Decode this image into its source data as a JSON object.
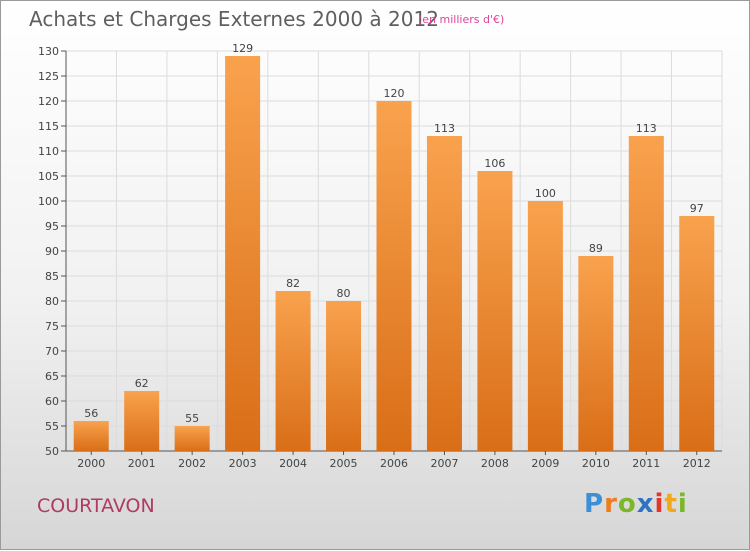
{
  "header": {
    "title": "Achats et Charges Externes 2000 à 2012",
    "unit": "(en milliers d'€)"
  },
  "footer": {
    "commune": "COURTAVON",
    "brand": "Proxiti"
  },
  "colors": {
    "bar_light": "#f9a24e",
    "bar_dark": "#d96e17",
    "brand_p": "#3a8fd6",
    "brand_r": "#f07c1c",
    "brand_o": "#7ab82a",
    "brand_x": "#2f74c0",
    "brand_i": "#e4342b",
    "brand_t": "#f0a81c",
    "brand_i2": "#7ab82a"
  },
  "chart_data": {
    "type": "bar",
    "title": "Achats et Charges Externes 2000 à 2012",
    "xlabel": "",
    "ylabel": "",
    "categories": [
      "2000",
      "2001",
      "2002",
      "2003",
      "2004",
      "2005",
      "2006",
      "2007",
      "2008",
      "2009",
      "2010",
      "2011",
      "2012"
    ],
    "values": [
      56,
      62,
      55,
      129,
      82,
      80,
      120,
      113,
      106,
      100,
      89,
      113,
      97
    ],
    "ylim": [
      50,
      130
    ],
    "yticks": [
      50,
      55,
      60,
      65,
      70,
      75,
      80,
      85,
      90,
      95,
      100,
      105,
      110,
      115,
      120,
      125,
      130
    ],
    "grid": true
  }
}
